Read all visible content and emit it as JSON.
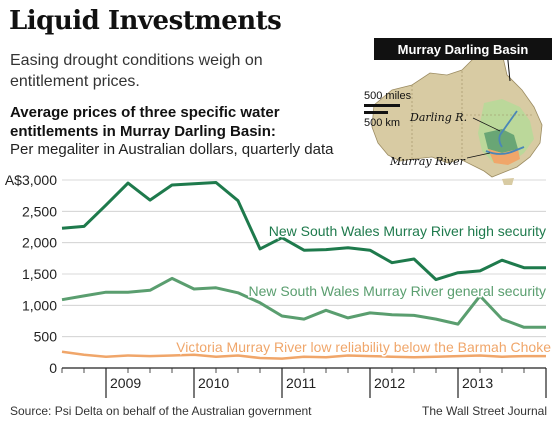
{
  "headline": "Liquid Investments",
  "deck": "Easing drought conditions weigh on entitlement prices.",
  "subtitle": "Average prices of three specific water entitlements in Murray Darling Basin:",
  "unit_note": "Per megaliter in Australian dollars, quarterly data",
  "footer": {
    "source": "Source: Psi Delta on behalf of the Australian government",
    "credit": "The Wall Street Journal"
  },
  "map": {
    "title": "Murray Darling Basin",
    "scale_miles": "500 miles",
    "scale_km": "500 km",
    "label_darling": "Darling R.",
    "label_murray": "Murray River",
    "colors": {
      "land": "#d8cba3",
      "basin": "#b9d89a",
      "nsw_zone": "#5a9e6f",
      "vic_zone": "#f0a66a",
      "river": "#4a86b8"
    }
  },
  "chart_data": {
    "type": "line",
    "title": "Average prices of three specific water entitlements in Murray Darling Basin:",
    "ylabel": "Per megaliter in Australian dollars, quarterly data",
    "y_tick_labels": [
      "A$3,000",
      "2,500",
      "2,000",
      "1,500",
      "1,000",
      "500",
      "0"
    ],
    "y_ticks": [
      3000,
      2500,
      2000,
      1500,
      1000,
      500,
      0
    ],
    "ylim": [
      0,
      3000
    ],
    "x_tick_labels": [
      "2009",
      "2010",
      "2011",
      "2012",
      "2013"
    ],
    "x_year_starts": [
      2009,
      2010,
      2011,
      2012,
      2013
    ],
    "xlim": [
      2008.5,
      2014.0
    ],
    "grid": true,
    "x": [
      2008.5,
      2008.75,
      2009.0,
      2009.25,
      2009.5,
      2009.75,
      2010.0,
      2010.25,
      2010.5,
      2010.75,
      2011.0,
      2011.25,
      2011.5,
      2011.75,
      2012.0,
      2012.25,
      2012.5,
      2012.75,
      2013.0,
      2013.25,
      2013.5,
      2013.75,
      2014.0
    ],
    "series": [
      {
        "name": "New South Wales Murray River high security",
        "color": "#1e7a4c",
        "values": [
          2230,
          2260,
          2600,
          2950,
          2680,
          2920,
          2940,
          2960,
          2670,
          1900,
          2080,
          1880,
          1890,
          1920,
          1880,
          1680,
          1740,
          1410,
          1520,
          1550,
          1720,
          1600,
          1600
        ]
      },
      {
        "name": "New South Wales Murray River general security",
        "color": "#5a9e6f",
        "values": [
          1090,
          1150,
          1210,
          1210,
          1240,
          1430,
          1260,
          1280,
          1200,
          1040,
          830,
          780,
          920,
          800,
          880,
          850,
          840,
          780,
          700,
          1150,
          780,
          650,
          650
        ]
      },
      {
        "name": "Victoria Murray River low reliability below the Barmah Choke",
        "color": "#f0a66a",
        "values": [
          260,
          210,
          180,
          200,
          190,
          200,
          210,
          180,
          200,
          160,
          150,
          180,
          170,
          200,
          190,
          180,
          170,
          180,
          190,
          200,
          180,
          190,
          190
        ]
      }
    ],
    "gridline_color": "#cccccc",
    "axis_color": "#222222"
  }
}
